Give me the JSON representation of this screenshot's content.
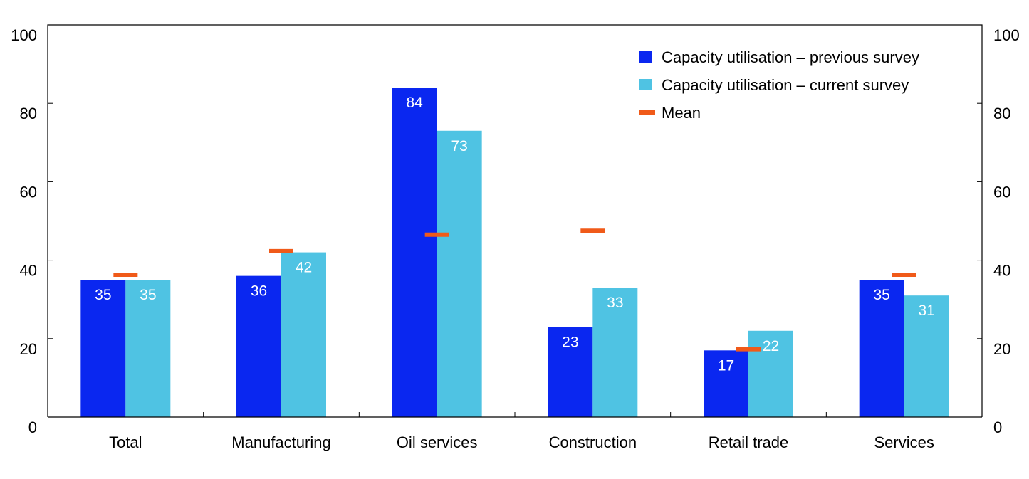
{
  "chart_data": {
    "type": "bar",
    "categories": [
      "Total",
      "Manufacturing",
      "Oil services",
      "Construction",
      "Retail trade",
      "Services"
    ],
    "series": [
      {
        "name": "Capacity utilisation – previous survey",
        "values": [
          35,
          36,
          84,
          23,
          17,
          35
        ],
        "color": "#0a27f0"
      },
      {
        "name": "Capacity utilisation – current survey",
        "values": [
          35,
          42,
          73,
          33,
          22,
          31
        ],
        "color": "#4fc3e3"
      }
    ],
    "mean": {
      "name": "Mean",
      "values": [
        36.3,
        42.3,
        46.5,
        47.5,
        17.3,
        36.3
      ],
      "color": "#f05a19"
    },
    "ylim": [
      0,
      100
    ],
    "yticks": [
      "0",
      "20",
      "40",
      "60",
      "80",
      "100"
    ],
    "y_axes": "left and right",
    "legend_position": "top-right",
    "grid": false
  }
}
